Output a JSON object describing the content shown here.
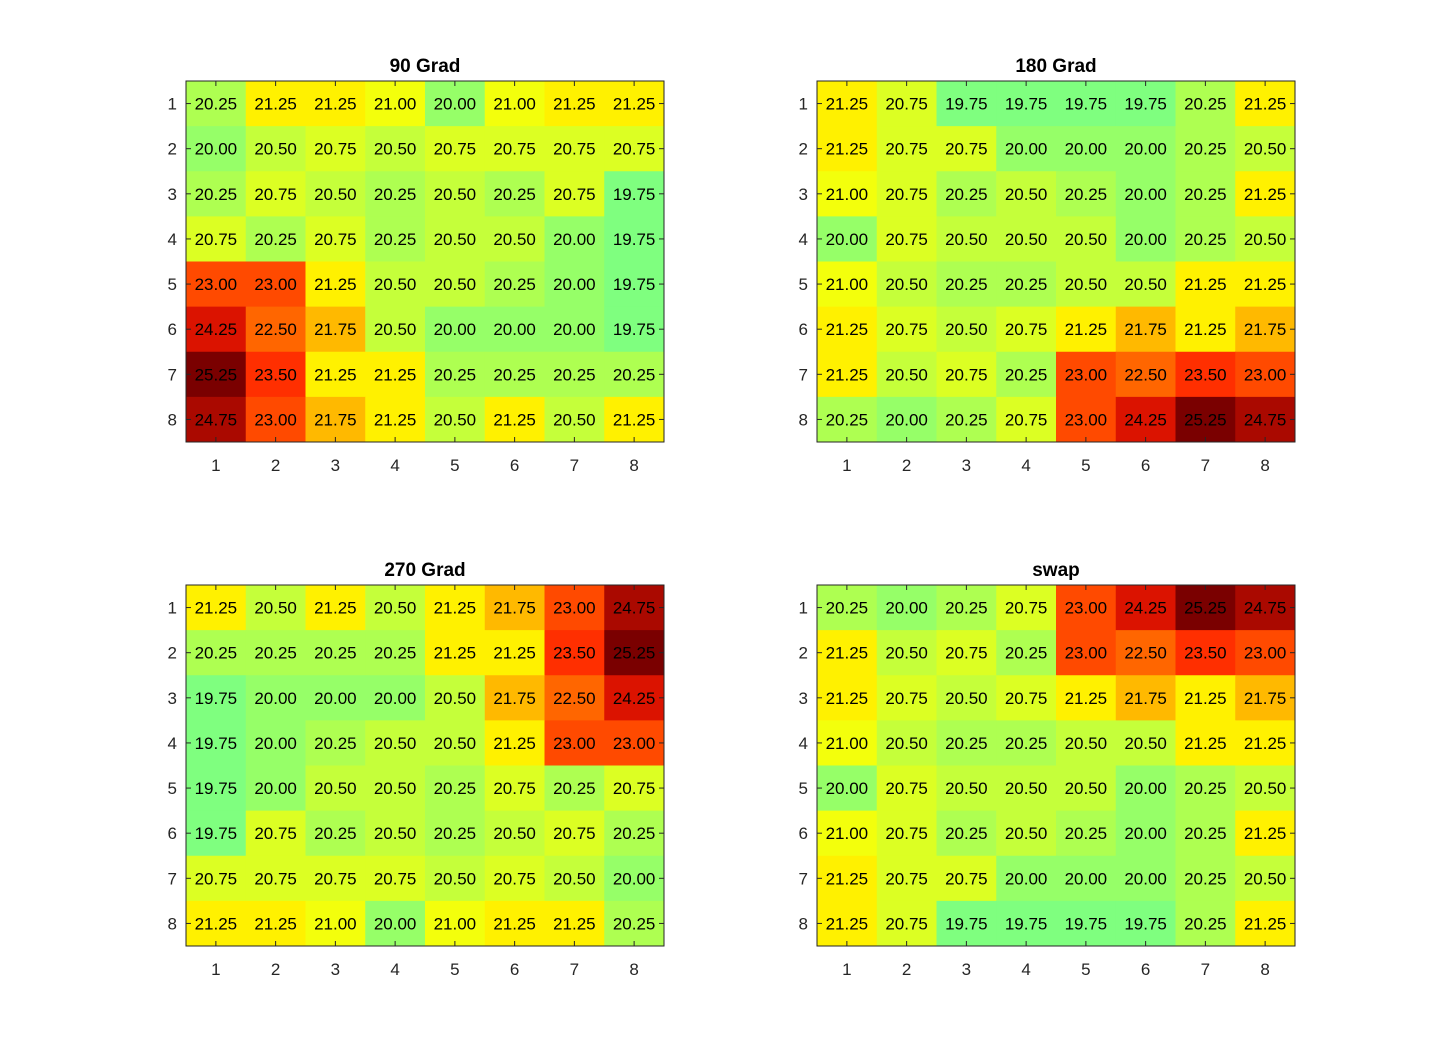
{
  "chart_data": [
    {
      "type": "heatmap",
      "title": "90 Grad",
      "x_ticks": [
        "1",
        "2",
        "3",
        "4",
        "5",
        "6",
        "7",
        "8"
      ],
      "y_ticks": [
        "1",
        "2",
        "3",
        "4",
        "5",
        "6",
        "7",
        "8"
      ],
      "xlabel": "",
      "ylabel": "",
      "colormap": [
        "#7fff7f",
        "#ffff00",
        "#ff6600",
        "#ff1a00",
        "#7a0000"
      ],
      "color_range": [
        19.75,
        25.25
      ],
      "values": [
        [
          20.25,
          21.25,
          21.25,
          21.0,
          20.0,
          21.0,
          21.25,
          21.25
        ],
        [
          20.0,
          20.5,
          20.75,
          20.5,
          20.75,
          20.75,
          20.75,
          20.75
        ],
        [
          20.25,
          20.75,
          20.5,
          20.25,
          20.5,
          20.25,
          20.75,
          19.75
        ],
        [
          20.75,
          20.25,
          20.75,
          20.25,
          20.5,
          20.5,
          20.0,
          19.75
        ],
        [
          23.0,
          23.0,
          21.25,
          20.5,
          20.5,
          20.25,
          20.0,
          19.75
        ],
        [
          24.25,
          22.5,
          21.75,
          20.5,
          20.0,
          20.0,
          20.0,
          19.75
        ],
        [
          25.25,
          23.5,
          21.25,
          21.25,
          20.25,
          20.25,
          20.25,
          20.25
        ],
        [
          24.75,
          23.0,
          21.75,
          21.25,
          20.5,
          21.25,
          20.5,
          21.25
        ]
      ]
    },
    {
      "type": "heatmap",
      "title": "180 Grad",
      "x_ticks": [
        "1",
        "2",
        "3",
        "4",
        "5",
        "6",
        "7",
        "8"
      ],
      "y_ticks": [
        "1",
        "2",
        "3",
        "4",
        "5",
        "6",
        "7",
        "8"
      ],
      "xlabel": "",
      "ylabel": "",
      "colormap": [
        "#7fff7f",
        "#ffff00",
        "#ff6600",
        "#ff1a00",
        "#7a0000"
      ],
      "color_range": [
        19.75,
        25.25
      ],
      "values": [
        [
          21.25,
          20.75,
          19.75,
          19.75,
          19.75,
          19.75,
          20.25,
          21.25
        ],
        [
          21.25,
          20.75,
          20.75,
          20.0,
          20.0,
          20.0,
          20.25,
          20.5
        ],
        [
          21.0,
          20.75,
          20.25,
          20.5,
          20.25,
          20.0,
          20.25,
          21.25
        ],
        [
          20.0,
          20.75,
          20.5,
          20.5,
          20.5,
          20.0,
          20.25,
          20.5
        ],
        [
          21.0,
          20.5,
          20.25,
          20.25,
          20.5,
          20.5,
          21.25,
          21.25
        ],
        [
          21.25,
          20.75,
          20.5,
          20.75,
          21.25,
          21.75,
          21.25,
          21.75
        ],
        [
          21.25,
          20.5,
          20.75,
          20.25,
          23.0,
          22.5,
          23.5,
          23.0
        ],
        [
          20.25,
          20.0,
          20.25,
          20.75,
          23.0,
          24.25,
          25.25,
          24.75
        ]
      ]
    },
    {
      "type": "heatmap",
      "title": "270 Grad",
      "x_ticks": [
        "1",
        "2",
        "3",
        "4",
        "5",
        "6",
        "7",
        "8"
      ],
      "y_ticks": [
        "1",
        "2",
        "3",
        "4",
        "5",
        "6",
        "7",
        "8"
      ],
      "xlabel": "",
      "ylabel": "",
      "colormap": [
        "#7fff7f",
        "#ffff00",
        "#ff6600",
        "#ff1a00",
        "#7a0000"
      ],
      "color_range": [
        19.75,
        25.25
      ],
      "values": [
        [
          21.25,
          20.5,
          21.25,
          20.5,
          21.25,
          21.75,
          23.0,
          24.75
        ],
        [
          20.25,
          20.25,
          20.25,
          20.25,
          21.25,
          21.25,
          23.5,
          25.25
        ],
        [
          19.75,
          20.0,
          20.0,
          20.0,
          20.5,
          21.75,
          22.5,
          24.25
        ],
        [
          19.75,
          20.0,
          20.25,
          20.5,
          20.5,
          21.25,
          23.0,
          23.0
        ],
        [
          19.75,
          20.0,
          20.5,
          20.5,
          20.25,
          20.75,
          20.25,
          20.75
        ],
        [
          19.75,
          20.75,
          20.25,
          20.5,
          20.25,
          20.5,
          20.75,
          20.25
        ],
        [
          20.75,
          20.75,
          20.75,
          20.75,
          20.5,
          20.75,
          20.5,
          20.0
        ],
        [
          21.25,
          21.25,
          21.0,
          20.0,
          21.0,
          21.25,
          21.25,
          20.25
        ]
      ]
    },
    {
      "type": "heatmap",
      "title": "swap",
      "x_ticks": [
        "1",
        "2",
        "3",
        "4",
        "5",
        "6",
        "7",
        "8"
      ],
      "y_ticks": [
        "1",
        "2",
        "3",
        "4",
        "5",
        "6",
        "7",
        "8"
      ],
      "xlabel": "",
      "ylabel": "",
      "colormap": [
        "#7fff7f",
        "#ffff00",
        "#ff6600",
        "#ff1a00",
        "#7a0000"
      ],
      "color_range": [
        19.75,
        25.25
      ],
      "values": [
        [
          20.25,
          20.0,
          20.25,
          20.75,
          23.0,
          24.25,
          25.25,
          24.75
        ],
        [
          21.25,
          20.5,
          20.75,
          20.25,
          23.0,
          22.5,
          23.5,
          23.0
        ],
        [
          21.25,
          20.75,
          20.5,
          20.75,
          21.25,
          21.75,
          21.25,
          21.75
        ],
        [
          21.0,
          20.5,
          20.25,
          20.25,
          20.5,
          20.5,
          21.25,
          21.25
        ],
        [
          20.0,
          20.75,
          20.5,
          20.5,
          20.5,
          20.0,
          20.25,
          20.5
        ],
        [
          21.0,
          20.75,
          20.25,
          20.5,
          20.25,
          20.0,
          20.25,
          21.25
        ],
        [
          21.25,
          20.75,
          20.75,
          20.0,
          20.0,
          20.0,
          20.25,
          20.5
        ],
        [
          21.25,
          20.75,
          19.75,
          19.75,
          19.75,
          19.75,
          20.25,
          21.25
        ]
      ]
    }
  ]
}
